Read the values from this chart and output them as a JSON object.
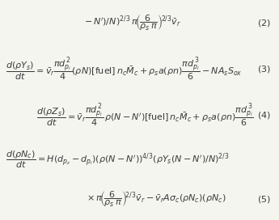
{
  "background_color": "#f5f5f0",
  "figsize": [
    3.45,
    2.72
  ],
  "dpi": 100,
  "text_color": "#3a3a3a",
  "fontsize": 8.0
}
